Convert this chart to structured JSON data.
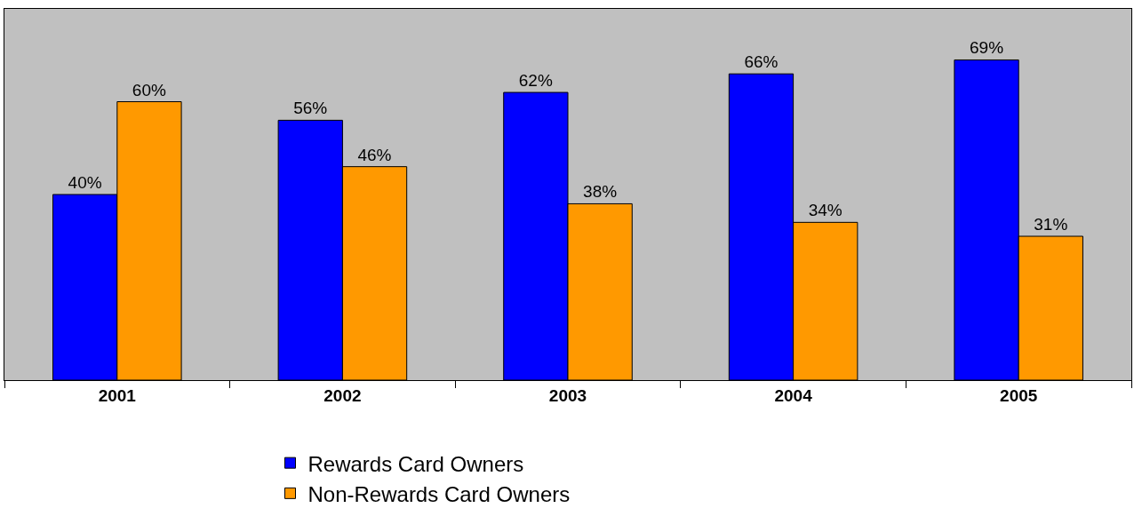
{
  "chart_data": {
    "type": "bar",
    "categories": [
      "2001",
      "2002",
      "2003",
      "2004",
      "2005"
    ],
    "series": [
      {
        "name": "Rewards Card Owners",
        "color": "#0000ff",
        "values": [
          40,
          56,
          62,
          66,
          69
        ],
        "value_labels": [
          "40%",
          "56%",
          "62%",
          "66%",
          "69%"
        ]
      },
      {
        "name": "Non-Rewards Card Owners",
        "color": "#ff9900",
        "values": [
          60,
          46,
          38,
          34,
          31
        ],
        "value_labels": [
          "60%",
          "46%",
          "38%",
          "34%",
          "31%"
        ]
      }
    ],
    "ylim": [
      0,
      80
    ],
    "grid": false,
    "legend": "bottom",
    "tick_labels": "x"
  }
}
